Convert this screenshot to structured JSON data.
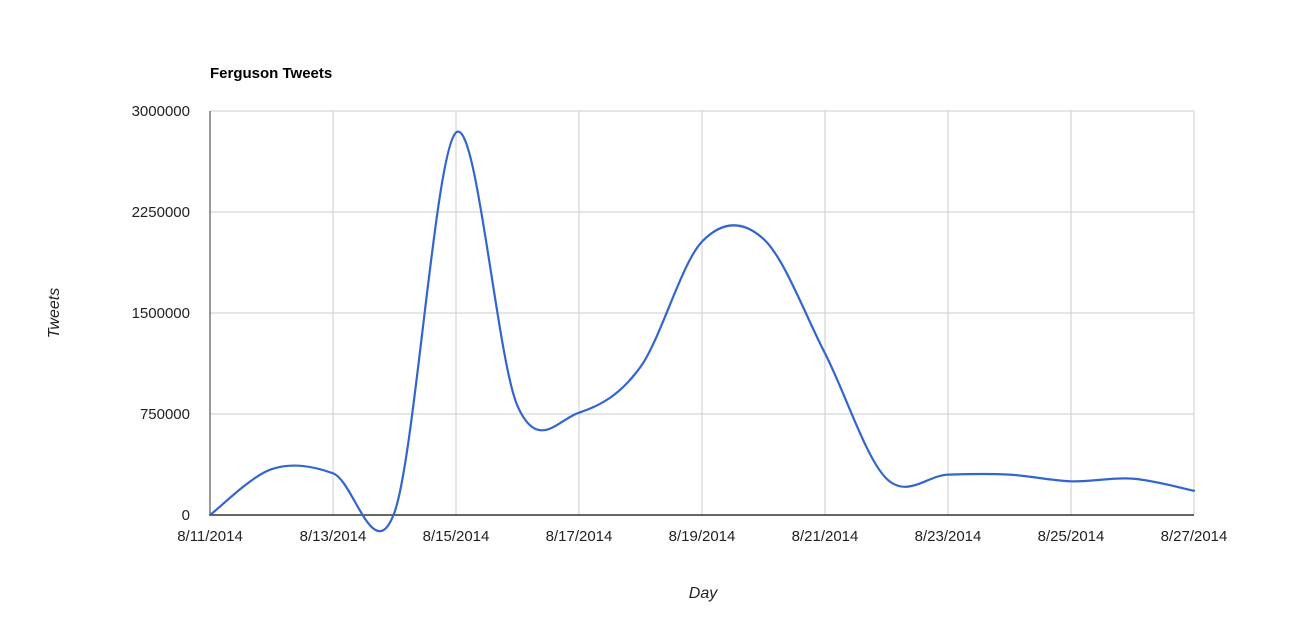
{
  "chart_data": {
    "type": "line",
    "title": "Ferguson Tweets",
    "xlabel": "Day",
    "ylabel": "Tweets",
    "x": [
      "8/11/2014",
      "8/12/2014",
      "8/13/2014",
      "8/14/2014",
      "8/15/2014",
      "8/16/2014",
      "8/17/2014",
      "8/18/2014",
      "8/19/2014",
      "8/20/2014",
      "8/21/2014",
      "8/22/2014",
      "8/23/2014",
      "8/24/2014",
      "8/25/2014",
      "8/26/2014",
      "8/27/2014"
    ],
    "x_tick_labels": [
      "8/11/2014",
      "8/13/2014",
      "8/15/2014",
      "8/17/2014",
      "8/19/2014",
      "8/21/2014",
      "8/23/2014",
      "8/25/2014",
      "8/27/2014"
    ],
    "series": [
      {
        "values": [
          0,
          340000,
          310000,
          20000,
          2840000,
          810000,
          760000,
          1100000,
          2030000,
          2050000,
          1200000,
          270000,
          300000,
          300000,
          250000,
          270000,
          180000
        ]
      }
    ],
    "ylim": [
      0,
      3000000
    ],
    "y_ticks": [
      0,
      750000,
      1500000,
      2250000,
      3000000
    ],
    "y_tick_labels": [
      "0",
      "750000",
      "1500000",
      "2250000",
      "3000000"
    ],
    "grid": true,
    "line_color": "#3366cc",
    "grid_color": "#cccccc",
    "axis_color": "#333333"
  }
}
